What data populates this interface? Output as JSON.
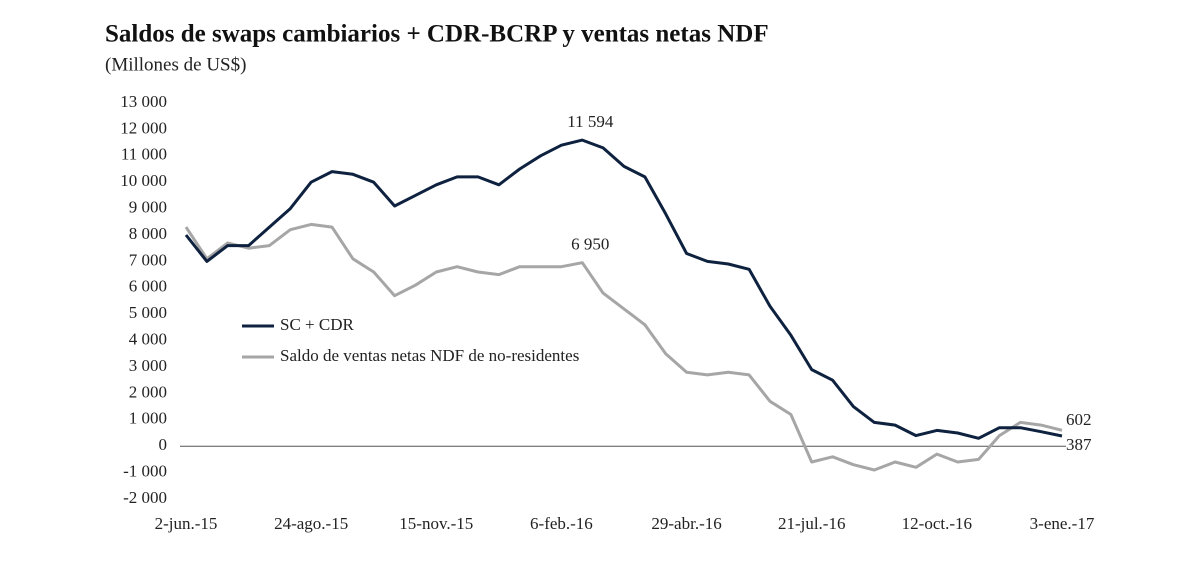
{
  "chart_data": {
    "type": "line",
    "title": "Saldos de swaps cambiarios + CDR-BCRP y ventas netas NDF",
    "subtitle": "(Millones de US$)",
    "categories": [
      "2-jun.-15",
      null,
      null,
      null,
      null,
      null,
      "24-ago.-15",
      null,
      null,
      null,
      null,
      null,
      "15-nov.-15",
      null,
      null,
      null,
      null,
      null,
      "6-feb.-16",
      null,
      null,
      null,
      null,
      null,
      "29-abr.-16",
      null,
      null,
      null,
      null,
      null,
      "21-jul.-16",
      null,
      null,
      null,
      null,
      null,
      "12-oct.-16",
      null,
      null,
      null,
      null,
      null,
      "3-ene.-17"
    ],
    "series": [
      {
        "name": "SC + CDR",
        "color": "#0e2240",
        "values": [
          8000,
          7000,
          7600,
          7600,
          8300,
          9000,
          10000,
          10400,
          10300,
          10000,
          9100,
          9500,
          9900,
          10200,
          10200,
          9900,
          10500,
          11000,
          11400,
          11594,
          11300,
          10600,
          10200,
          8800,
          7300,
          7000,
          6900,
          6700,
          5300,
          4200,
          2900,
          2500,
          1500,
          900,
          800,
          400,
          600,
          500,
          300,
          700,
          700,
          550,
          387
        ],
        "value_labels": [
          null,
          null,
          null,
          null,
          null,
          null,
          null,
          null,
          null,
          null,
          null,
          null,
          null,
          null,
          null,
          null,
          null,
          null,
          null,
          "11 594",
          null,
          null,
          null,
          null,
          null,
          null,
          null,
          null,
          null,
          null,
          null,
          null,
          null,
          null,
          null,
          null,
          null,
          null,
          null,
          null,
          null,
          null,
          "387"
        ]
      },
      {
        "name": "Saldo de ventas netas NDF de no-residentes",
        "color": "#a6a6a6",
        "values": [
          8300,
          7100,
          7700,
          7500,
          7600,
          8200,
          8400,
          8300,
          7100,
          6600,
          5700,
          6100,
          6600,
          6800,
          6600,
          6500,
          6800,
          6800,
          6800,
          6950,
          5800,
          5200,
          4600,
          3500,
          2800,
          2700,
          2800,
          2700,
          1700,
          1200,
          -600,
          -400,
          -700,
          -900,
          -600,
          -800,
          -300,
          -600,
          -500,
          400,
          900,
          800,
          602
        ],
        "value_labels": [
          null,
          null,
          null,
          null,
          null,
          null,
          null,
          null,
          null,
          null,
          null,
          null,
          null,
          null,
          null,
          null,
          null,
          null,
          null,
          "6 950",
          null,
          null,
          null,
          null,
          null,
          null,
          null,
          null,
          null,
          null,
          null,
          null,
          null,
          null,
          null,
          null,
          null,
          null,
          null,
          null,
          null,
          null,
          "602"
        ]
      }
    ],
    "ylim": [
      -2000,
      13000
    ],
    "yticks": [
      {
        "value": -2000,
        "label": "-2 000"
      },
      {
        "value": -1000,
        "label": "-1 000"
      },
      0,
      {
        "value": 1000,
        "label": "1 000"
      },
      {
        "value": 2000,
        "label": "2 000"
      },
      {
        "value": 3000,
        "label": "3 000"
      },
      {
        "value": 4000,
        "label": "4 000"
      },
      {
        "value": 5000,
        "label": "5 000"
      },
      {
        "value": 6000,
        "label": "6 000"
      },
      {
        "value": 7000,
        "label": "7 000"
      },
      {
        "value": 8000,
        "label": "8 000"
      },
      {
        "value": 9000,
        "label": "9 000"
      },
      {
        "value": 10000,
        "label": "10 000"
      },
      {
        "value": 11000,
        "label": "11 000"
      },
      {
        "value": 12000,
        "label": "12 000"
      },
      {
        "value": 13000,
        "label": "13 000"
      }
    ]
  }
}
